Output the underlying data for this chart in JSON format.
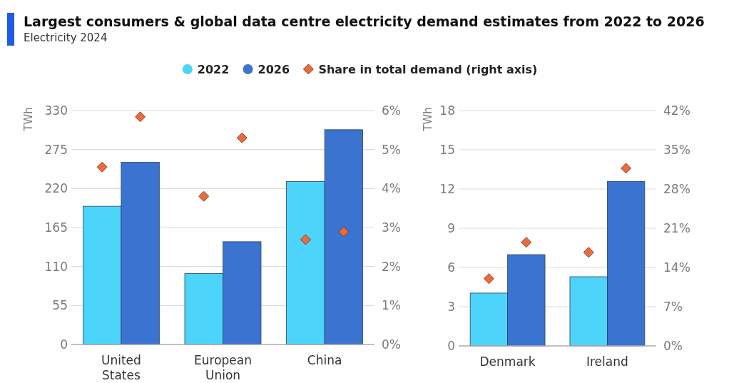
{
  "chart_data": [
    {
      "type": "bar",
      "title": "Largest consumers & global data centre electricity demand estimates from 2022 to 2026",
      "subtitle": "Electricity 2024",
      "ylabel": "TWh",
      "categories": [
        "United States",
        "European Union",
        "China"
      ],
      "series": [
        {
          "name": "2022",
          "color": "#4dd4fb",
          "values": [
            195,
            100,
            230
          ]
        },
        {
          "name": "2026",
          "color": "#3b74d0",
          "values": [
            257,
            145,
            303
          ]
        },
        {
          "name": "Share in total demand (right axis)",
          "type": "scatter",
          "axis": "y2",
          "color": "#ee6a3c",
          "x": [
            "United States",
            "European Union",
            "China"
          ],
          "values": [
            4.55,
            3.8,
            2.69
          ]
        },
        {
          "type": "scatter",
          "axis": "y2",
          "color": "#ee6a3c",
          "x": [
            "United States",
            "European Union",
            "China"
          ],
          "values": [
            5.84,
            5.3,
            2.89
          ]
        }
      ],
      "ylim": [
        0,
        330
      ],
      "yticks": [
        0,
        55,
        110,
        165,
        220,
        275,
        330
      ],
      "y2lim": [
        0,
        6
      ],
      "y2ticks": [
        {
          "value": 0,
          "label": "0%"
        },
        {
          "value": 1,
          "label": "1%"
        },
        {
          "value": 2,
          "label": "2%"
        },
        {
          "value": 3,
          "label": "3%"
        },
        {
          "value": 4,
          "label": "4%"
        },
        {
          "value": 5,
          "label": "5%"
        },
        {
          "value": 6,
          "label": "6%"
        }
      ],
      "grid": "y",
      "legend": "top",
      "marker": "diamond"
    },
    {
      "type": "bar",
      "ylabel": "TWh",
      "categories": [
        "Denmark",
        "Ireland"
      ],
      "series": [
        {
          "color": "#4dd4fb",
          "values": [
            4.04,
            5.29
          ]
        },
        {
          "color": "#3b74d0",
          "values": [
            6.98,
            12.58
          ]
        },
        {
          "type": "scatter",
          "axis": "y2",
          "color": "#ee6a3c",
          "x": [
            "Denmark",
            "Ireland"
          ],
          "values": [
            12,
            16.7
          ]
        },
        {
          "type": "scatter",
          "axis": "y2",
          "color": "#ee6a3c",
          "x": [
            "Denmark",
            "Ireland"
          ],
          "values": [
            18.5,
            31.7
          ]
        }
      ],
      "ylim": [
        0,
        18
      ],
      "yticks": [
        0,
        3,
        6,
        9,
        12,
        15,
        18
      ],
      "y2lim": [
        0,
        42
      ],
      "y2ticks": [
        {
          "value": 0,
          "label": "0%"
        },
        {
          "value": 7,
          "label": "7%"
        },
        {
          "value": 14,
          "label": "14%"
        },
        {
          "value": 21,
          "label": "21%"
        },
        {
          "value": 28,
          "label": "28%"
        },
        {
          "value": 35,
          "label": "35%"
        },
        {
          "value": 42,
          "label": "42%"
        }
      ],
      "grid": "y",
      "marker": "diamond"
    }
  ]
}
